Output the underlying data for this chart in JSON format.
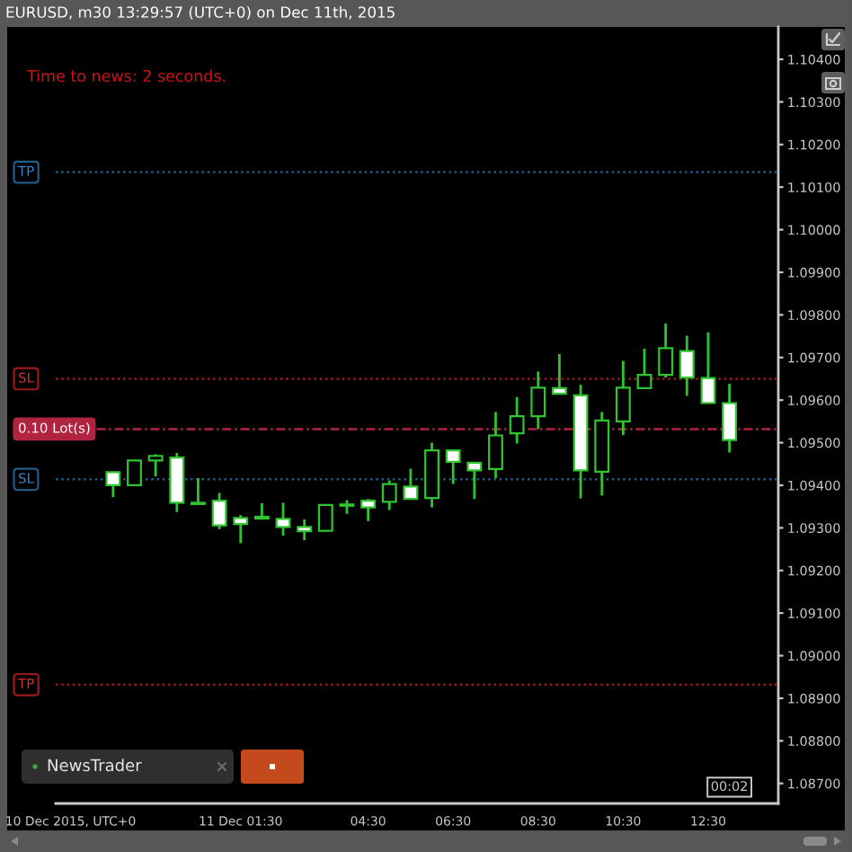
{
  "chart_data": {
    "type": "candlestick",
    "title": "EURUSD, m30 13:29:57 (UTC+0) on Dec 11th, 2015",
    "x": [
      "2015-12-10T22:30",
      "2015-12-10T23:00",
      "2015-12-10T23:30",
      "2015-12-11T00:00",
      "2015-12-11T00:30",
      "2015-12-11T01:00",
      "2015-12-11T01:30",
      "2015-12-11T02:00",
      "2015-12-11T02:30",
      "2015-12-11T03:00",
      "2015-12-11T03:30",
      "2015-12-11T04:00",
      "2015-12-11T04:30",
      "2015-12-11T05:00",
      "2015-12-11T05:30",
      "2015-12-11T06:00",
      "2015-12-11T06:30",
      "2015-12-11T07:00",
      "2015-12-11T07:30",
      "2015-12-11T08:00",
      "2015-12-11T08:30",
      "2015-12-11T09:00",
      "2015-12-11T09:30",
      "2015-12-11T10:00",
      "2015-12-11T10:30",
      "2015-12-11T11:00",
      "2015-12-11T11:30",
      "2015-12-11T12:00",
      "2015-12-11T12:30",
      "2015-12-11T13:00"
    ],
    "ohlc": [
      [
        1.09431,
        1.09433,
        1.09372,
        1.094
      ],
      [
        1.094,
        1.0946,
        1.09398,
        1.09458
      ],
      [
        1.09458,
        1.09473,
        1.09421,
        1.09469
      ],
      [
        1.09465,
        1.09476,
        1.09337,
        1.09359
      ],
      [
        1.09359,
        1.09417,
        1.09354,
        1.09356
      ],
      [
        1.09364,
        1.09382,
        1.09297,
        1.09306
      ],
      [
        1.09323,
        1.0933,
        1.09264,
        1.09309
      ],
      [
        1.09322,
        1.09358,
        1.09319,
        1.09326
      ],
      [
        1.09321,
        1.09359,
        1.09282,
        1.09302
      ],
      [
        1.09302,
        1.0932,
        1.09271,
        1.09292
      ],
      [
        1.09293,
        1.09355,
        1.09292,
        1.09354
      ],
      [
        1.09352,
        1.09365,
        1.09333,
        1.09355
      ],
      [
        1.09364,
        1.09368,
        1.09316,
        1.09348
      ],
      [
        1.09361,
        1.09411,
        1.09342,
        1.09403
      ],
      [
        1.09397,
        1.09439,
        1.09367,
        1.09368
      ],
      [
        1.0937,
        1.095,
        1.09348,
        1.09482
      ],
      [
        1.09482,
        1.09483,
        1.09403,
        1.09455
      ],
      [
        1.09453,
        1.09454,
        1.09368,
        1.09435
      ],
      [
        1.09438,
        1.09572,
        1.09417,
        1.09517
      ],
      [
        1.09522,
        1.09607,
        1.09498,
        1.09562
      ],
      [
        1.09562,
        1.09667,
        1.09532,
        1.09629
      ],
      [
        1.09628,
        1.09708,
        1.09614,
        1.09615
      ],
      [
        1.09611,
        1.09636,
        1.09369,
        1.09435
      ],
      [
        1.09432,
        1.09572,
        1.09376,
        1.09552
      ],
      [
        1.0955,
        1.09692,
        1.09518,
        1.09629
      ],
      [
        1.09628,
        1.09721,
        1.09627,
        1.09659
      ],
      [
        1.09659,
        1.0978,
        1.09653,
        1.09722
      ],
      [
        1.09715,
        1.09751,
        1.0961,
        1.09653
      ],
      [
        1.09652,
        1.09759,
        1.09592,
        1.09593
      ],
      [
        1.09593,
        1.09638,
        1.09477,
        1.09506
      ]
    ],
    "xlim": [
      "2015-12-10T21:09",
      "2015-12-11T14:09"
    ],
    "ylim": [
      1.08653,
      1.10476
    ],
    "xticks": [
      {
        "value": "2015-12-10T21:30",
        "label": "10 Dec 2015, UTC+0"
      },
      {
        "value": "2015-12-11T01:30",
        "label": "11 Dec 01:30"
      },
      {
        "value": "2015-12-11T04:30",
        "label": "04:30"
      },
      {
        "value": "2015-12-11T06:30",
        "label": "06:30"
      },
      {
        "value": "2015-12-11T08:30",
        "label": "08:30"
      },
      {
        "value": "2015-12-11T10:30",
        "label": "10:30"
      },
      {
        "value": "2015-12-11T12:30",
        "label": "12:30"
      }
    ],
    "yticks": [
      {
        "value": 1.087,
        "label": "1.08700"
      },
      {
        "value": 1.088,
        "label": "1.08800"
      },
      {
        "value": 1.089,
        "label": "1.08900"
      },
      {
        "value": 1.09,
        "label": "1.09000"
      },
      {
        "value": 1.091,
        "label": "1.09100"
      },
      {
        "value": 1.092,
        "label": "1.09200"
      },
      {
        "value": 1.093,
        "label": "1.09300"
      },
      {
        "value": 1.094,
        "label": "1.09400"
      },
      {
        "value": 1.095,
        "label": "1.09500"
      },
      {
        "value": 1.096,
        "label": "1.09600"
      },
      {
        "value": 1.097,
        "label": "1.09700"
      },
      {
        "value": 1.098,
        "label": "1.09800"
      },
      {
        "value": 1.099,
        "label": "1.09900"
      },
      {
        "value": 1.1,
        "label": "1.10000"
      },
      {
        "value": 1.101,
        "label": "1.10100"
      },
      {
        "value": 1.102,
        "label": "1.10200"
      },
      {
        "value": 1.103,
        "label": "1.10300"
      },
      {
        "value": 1.104,
        "label": "1.10400"
      }
    ],
    "ref_lines": [
      {
        "axis": "y",
        "value": 1.10135,
        "label": "TP",
        "color": "#1f5b86",
        "line_style": "dotted"
      },
      {
        "axis": "y",
        "value": 1.0965,
        "label": "SL",
        "color": "#9a1b1b",
        "line_style": "dotted"
      },
      {
        "axis": "y",
        "value": 1.09532,
        "label": "0.10 Lot(s)",
        "color": "#b0243f",
        "line_style": "dashed"
      },
      {
        "axis": "y",
        "value": 1.09414,
        "label": "SL",
        "color": "#1f5b86",
        "line_style": "dotted"
      },
      {
        "axis": "y",
        "value": 1.08932,
        "label": "TP",
        "color": "#9a1b1b",
        "line_style": "dotted"
      }
    ],
    "annotations": [
      "Time to news: 2 seconds.",
      "NewsTrader",
      "00:02"
    ]
  }
}
